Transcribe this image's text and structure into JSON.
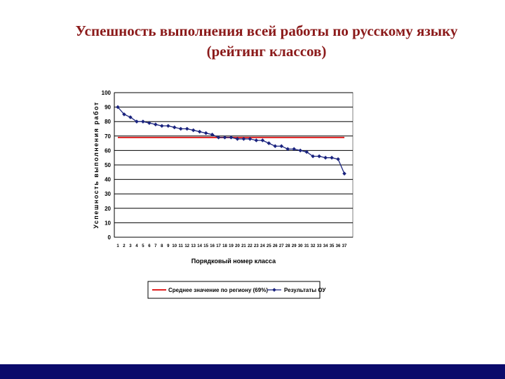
{
  "slide": {
    "title_line1": "Успешность выполнения всей работы по русскому языку",
    "title_line2": "(рейтинг классов)"
  },
  "colors": {
    "title": "#8b1a1a",
    "average_line": "#e02020",
    "results_series": "#1a237e",
    "bottom_bar": "#0b0b6b"
  },
  "chart_data": {
    "type": "line",
    "title": "",
    "xlabel": "Порядковый номер класса",
    "ylabel": "Успешность выполнения работ",
    "ylim": [
      0,
      100
    ],
    "yticks": [
      0,
      10,
      20,
      30,
      40,
      50,
      60,
      70,
      80,
      90,
      100
    ],
    "grid": true,
    "legend_position": "bottom",
    "x": [
      "1",
      "2",
      "3",
      "4",
      "5",
      "6",
      "7",
      "8",
      "9",
      "10",
      "11",
      "12",
      "13",
      "14",
      "15",
      "16",
      "17",
      "18",
      "19",
      "20",
      "21",
      "22",
      "23",
      "24",
      "25",
      "26",
      "27",
      "28",
      "29",
      "30",
      "31",
      "32",
      "33",
      "34",
      "35",
      "36",
      "37"
    ],
    "series": [
      {
        "name": "Среднее значение по региону (69%)",
        "kind": "reference_line",
        "color": "#e02020",
        "values": [
          69,
          69,
          69,
          69,
          69,
          69,
          69,
          69,
          69,
          69,
          69,
          69,
          69,
          69,
          69,
          69,
          69,
          69,
          69,
          69,
          69,
          69,
          69,
          69,
          69,
          69,
          69,
          69,
          69,
          69,
          69,
          69,
          69,
          69,
          69,
          69,
          69
        ]
      },
      {
        "name": "Результаты ОУ",
        "kind": "line_markers",
        "color": "#1a237e",
        "marker": "diamond",
        "values": [
          90,
          85,
          83,
          80,
          80,
          79,
          78,
          77,
          77,
          76,
          75,
          75,
          74,
          73,
          72,
          71,
          69,
          69,
          69,
          68,
          68,
          68,
          67,
          67,
          65,
          63,
          63,
          61,
          61,
          60,
          59,
          56,
          56,
          55,
          55,
          54,
          44
        ]
      }
    ]
  }
}
